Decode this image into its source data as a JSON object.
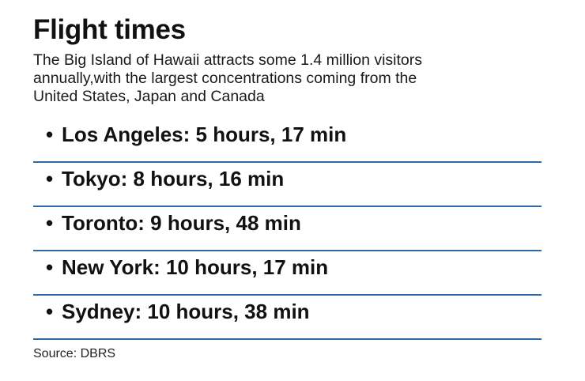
{
  "title": "Flight times",
  "subtitle_lines": [
    "The Big Island of Hawaii attracts some 1.4 million visitors",
    "annually,with the largest concentrations coming from the",
    "United States, Japan and Canada"
  ],
  "bullet_glyph": "•",
  "flights": [
    {
      "text": "Los Angeles: 5 hours, 17 min"
    },
    {
      "text": "Tokyo: 8 hours, 16 min"
    },
    {
      "text": "Toronto: 9 hours, 48 min"
    },
    {
      "text": "New York: 10 hours, 17 min"
    },
    {
      "text": "Sydney: 10 hours, 38 min"
    }
  ],
  "source": "Source: DBRS",
  "colors": {
    "divider": "#2f6aa3",
    "text": "#111111"
  }
}
